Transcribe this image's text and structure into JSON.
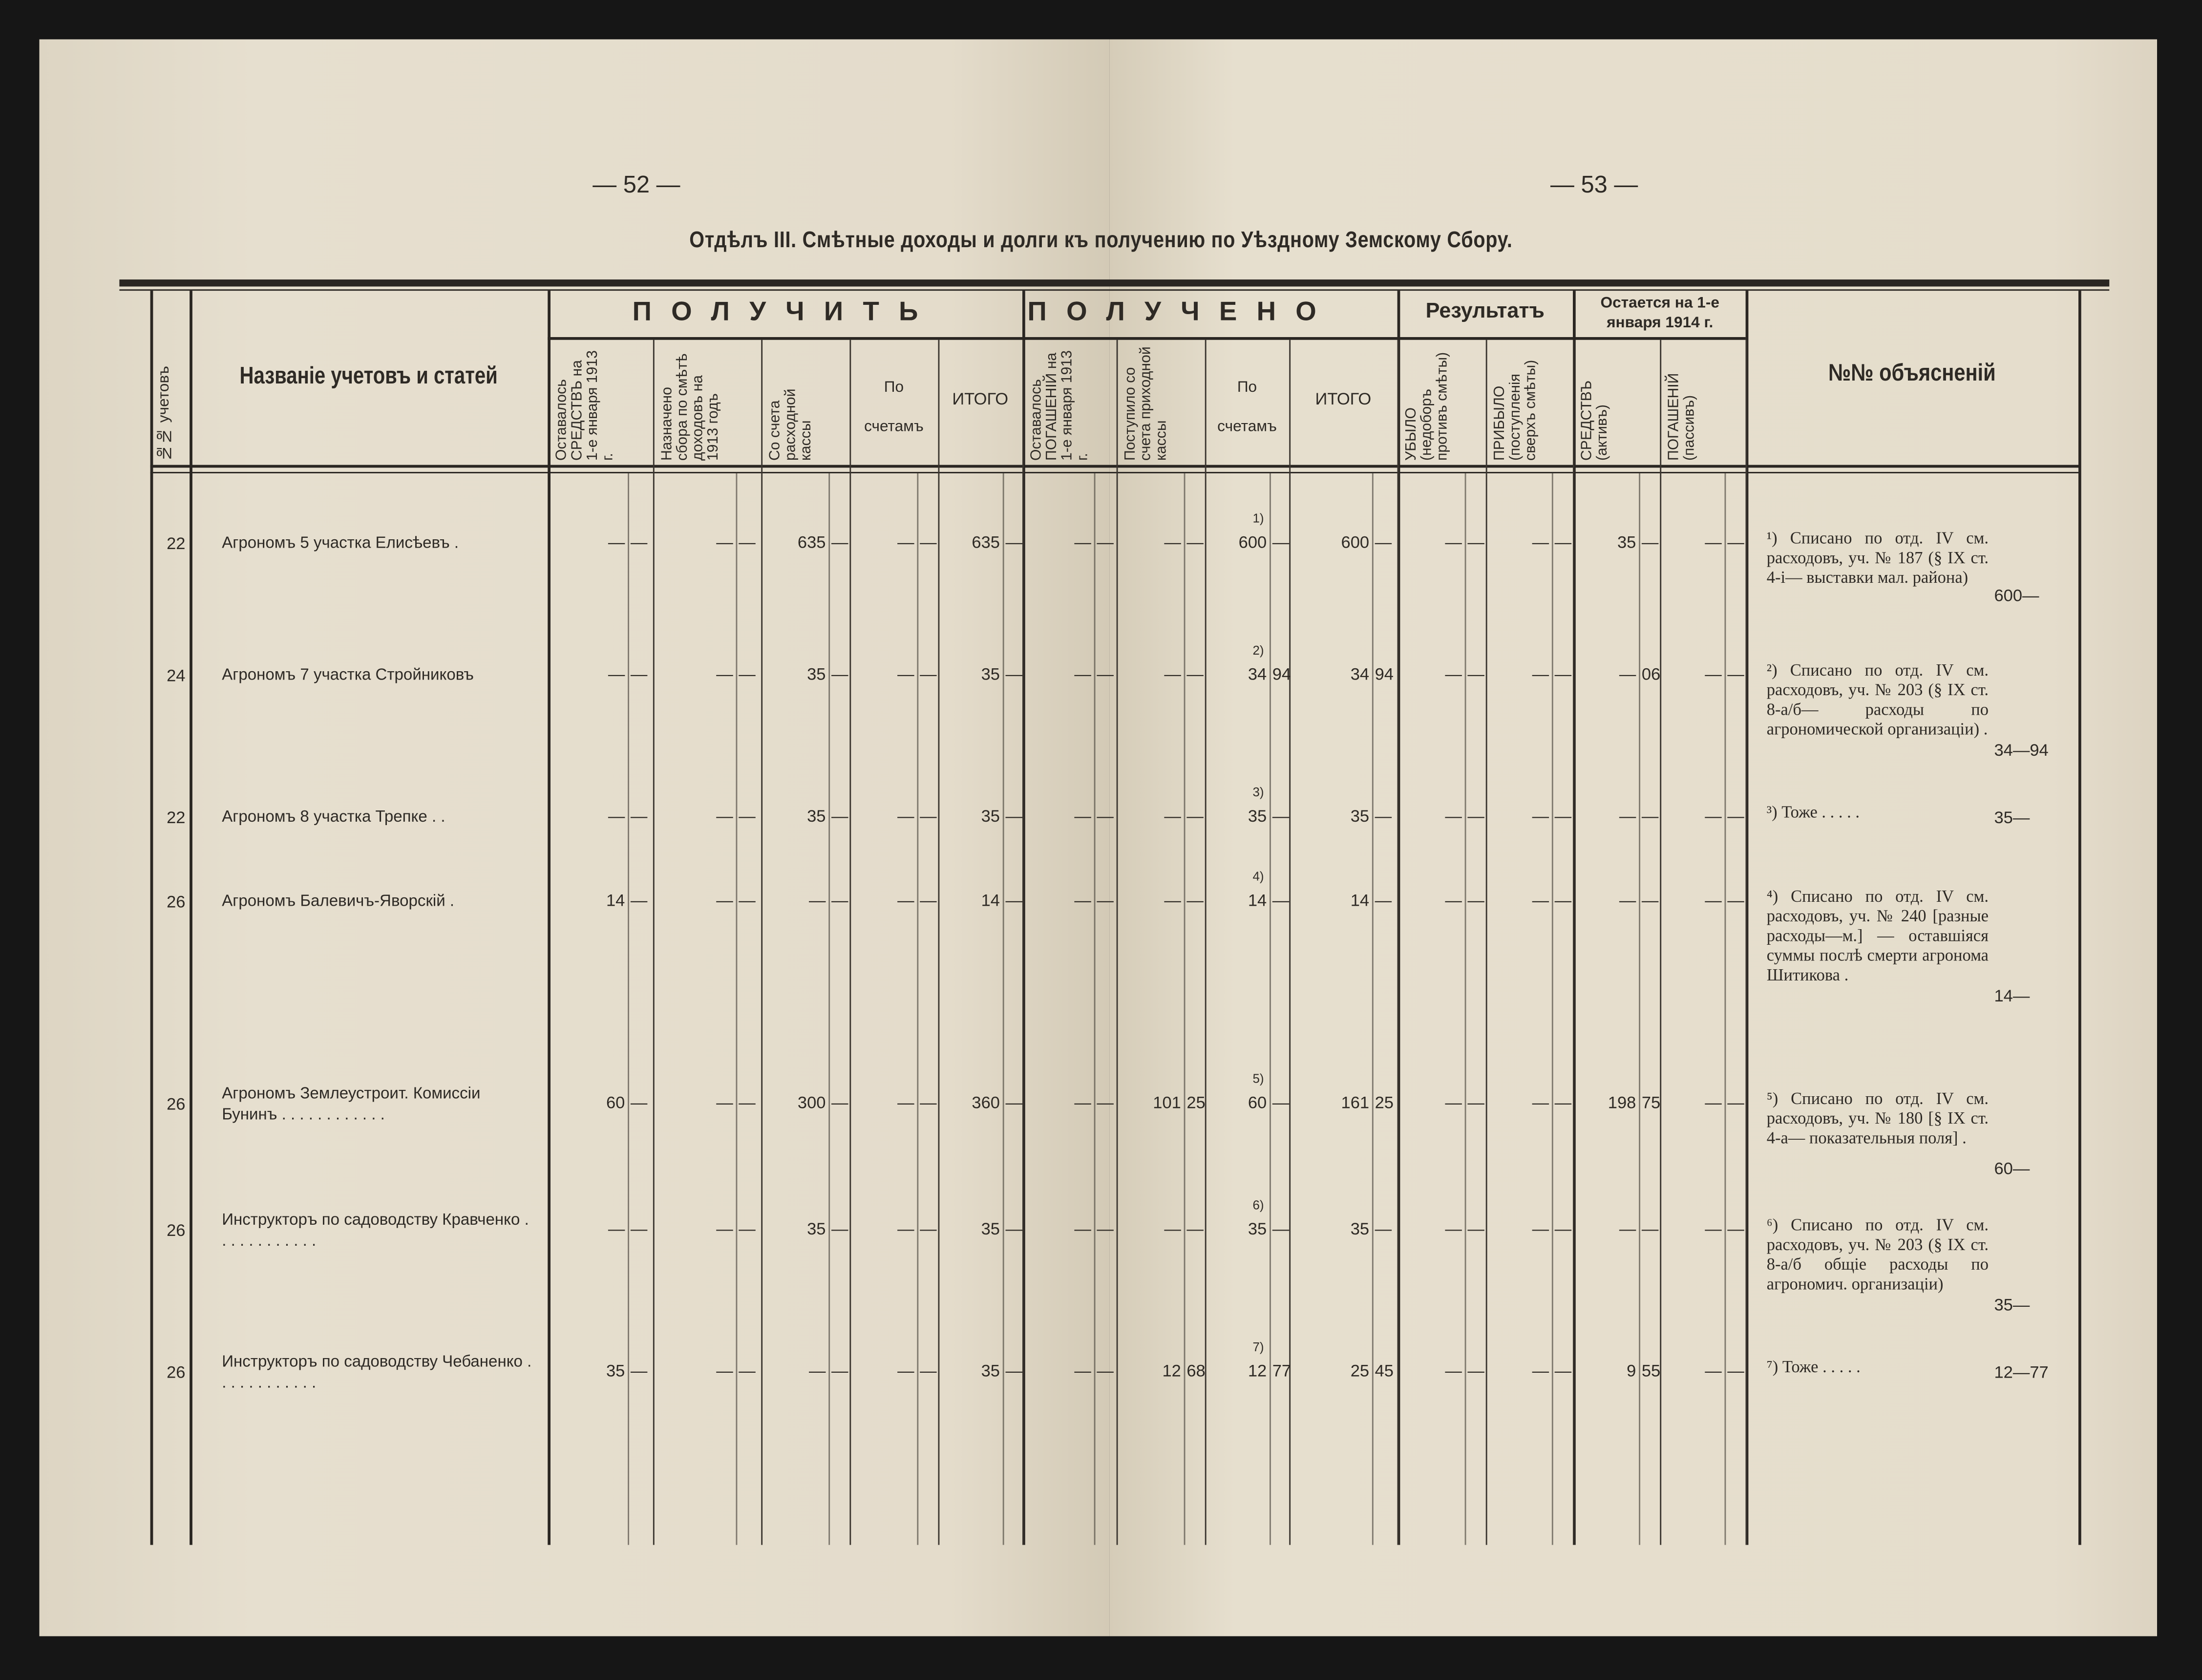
{
  "page_left_number": "— 52 —",
  "page_right_number": "— 53 —",
  "title": "Отдѣлъ III. Смѣтные доходы и долги къ получению по Уѣздному Земскому Сбору.",
  "header": {
    "num_col": "№№ учетовъ",
    "name_col": "Названіе учетовъ и статей",
    "group_receive": "ПОЛУЧИТЬ",
    "group_received": "ПОЛУЧЕНО",
    "group_result": "Результатъ",
    "group_remain": "Остается на 1-е января 1914 г.",
    "notes_col": "№№ объясненій",
    "receive_cols": [
      "Оставалось СРЕДСТВЪ на 1-е января 1913 г.",
      "Назначено сбора по смѣтѣ доходовъ на 1913 годъ",
      "Со счета расходной кассы",
      "По счетамъ",
      "ИТОГО"
    ],
    "received_cols": [
      "Оставалось ПОГАШЕНІЙ на 1-е января 1913 г.",
      "Поступило со счета приходной кассы",
      "По счетамъ",
      "ИТОГО"
    ],
    "result_cols": [
      "УБЫЛО (недоборъ противъ смѣты)",
      "ПРИБЫЛО (поступленія сверхъ смѣты)"
    ],
    "remain_cols": [
      "СРЕДСТВЪ (активъ)",
      "ПОГАШЕНІЙ (пассивъ)"
    ]
  },
  "rows": [
    {
      "num": "22",
      "name": "Агрономъ 5 участка Елисѣевъ  .",
      "cells": [
        [
          "—",
          "—"
        ],
        [
          "—",
          "—"
        ],
        [
          "635",
          "—"
        ],
        [
          "—",
          "—"
        ],
        [
          "635",
          "—"
        ],
        [
          "—",
          "—"
        ],
        [
          "—",
          "—"
        ],
        [
          "600",
          "—"
        ],
        [
          "600",
          "—"
        ],
        [
          "—",
          "—"
        ],
        [
          "—",
          "—"
        ],
        [
          "35",
          "—"
        ],
        [
          "—",
          "—"
        ]
      ],
      "mark": "1)",
      "note": "¹) Списано по отд. IV см. расходовъ, уч. № 187 (§ IX ст. 4-i— выставки мал. района)",
      "amount": "600—"
    },
    {
      "num": "24",
      "name": "Агрономъ 7 участка Стройниковъ",
      "cells": [
        [
          "—",
          "—"
        ],
        [
          "—",
          "—"
        ],
        [
          "35",
          "—"
        ],
        [
          "—",
          "—"
        ],
        [
          "35",
          "—"
        ],
        [
          "—",
          "—"
        ],
        [
          "—",
          "—"
        ],
        [
          "34",
          "94"
        ],
        [
          "34",
          "94"
        ],
        [
          "—",
          "—"
        ],
        [
          "—",
          "—"
        ],
        [
          "—",
          "06"
        ],
        [
          "—",
          "—"
        ]
      ],
      "mark": "2)",
      "note": "²) Списано по отд. IV см. расходовъ, уч. № 203 (§ IX ст. 8-а/б— расходы по агрономической организаціи) .",
      "amount": "34—94"
    },
    {
      "num": "22",
      "name": "Агрономъ 8 участка Трепке  . .",
      "cells": [
        [
          "—",
          "—"
        ],
        [
          "—",
          "—"
        ],
        [
          "35",
          "—"
        ],
        [
          "—",
          "—"
        ],
        [
          "35",
          "—"
        ],
        [
          "—",
          "—"
        ],
        [
          "—",
          "—"
        ],
        [
          "35",
          "—"
        ],
        [
          "35",
          "—"
        ],
        [
          "—",
          "—"
        ],
        [
          "—",
          "—"
        ],
        [
          "—",
          "—"
        ],
        [
          "—",
          "—"
        ]
      ],
      "mark": "3)",
      "note": "³) Тоже . . . . .",
      "amount": "35—"
    },
    {
      "num": "26",
      "name": "Агрономъ Балевичъ-Яворскій  .",
      "cells": [
        [
          "14",
          "—"
        ],
        [
          "—",
          "—"
        ],
        [
          "—",
          "—"
        ],
        [
          "—",
          "—"
        ],
        [
          "14",
          "—"
        ],
        [
          "—",
          "—"
        ],
        [
          "—",
          "—"
        ],
        [
          "14",
          "—"
        ],
        [
          "14",
          "—"
        ],
        [
          "—",
          "—"
        ],
        [
          "—",
          "—"
        ],
        [
          "—",
          "—"
        ],
        [
          "—",
          "—"
        ]
      ],
      "mark": "4)",
      "note": "⁴) Списано по отд. IV см. расходовъ, уч. № 240 [разные расходы—м.] — оставшіяся суммы послѣ смерти агронома Шитикова .",
      "amount": "14—"
    },
    {
      "num": "26",
      "name": "Агрономъ Землеустроит. Комиссіи Бунинъ . . . . . . . . . . . .",
      "cells": [
        [
          "60",
          "—"
        ],
        [
          "—",
          "—"
        ],
        [
          "300",
          "—"
        ],
        [
          "—",
          "—"
        ],
        [
          "360",
          "—"
        ],
        [
          "—",
          "—"
        ],
        [
          "101",
          "25"
        ],
        [
          "60",
          "—"
        ],
        [
          "161",
          "25"
        ],
        [
          "—",
          "—"
        ],
        [
          "—",
          "—"
        ],
        [
          "198",
          "75"
        ],
        [
          "—",
          "—"
        ]
      ],
      "mark": "5)",
      "note": "⁵) Списано по отд. IV см. расходовъ, уч. № 180 [§ IX ст. 4-а— показательныя поля] .",
      "amount": "60—"
    },
    {
      "num": "26",
      "name": "Инструкторъ по садоводству Кравченко . . . . . . . . . . . .",
      "cells": [
        [
          "—",
          "—"
        ],
        [
          "—",
          "—"
        ],
        [
          "35",
          "—"
        ],
        [
          "—",
          "—"
        ],
        [
          "35",
          "—"
        ],
        [
          "—",
          "—"
        ],
        [
          "—",
          "—"
        ],
        [
          "35",
          "—"
        ],
        [
          "35",
          "—"
        ],
        [
          "—",
          "—"
        ],
        [
          "—",
          "—"
        ],
        [
          "—",
          "—"
        ],
        [
          "—",
          "—"
        ]
      ],
      "mark": "6)",
      "note": "⁶) Списано по отд. IV см. расходовъ, уч. № 203 (§ IX ст. 8-а/б общіе расходы по агрономич. организаціи)",
      "amount": "35—"
    },
    {
      "num": "26",
      "name": "Инструкторъ по садоводству Чебаненко . . . . . . . . . . . .",
      "cells": [
        [
          "35",
          "—"
        ],
        [
          "—",
          "—"
        ],
        [
          "—",
          "—"
        ],
        [
          "—",
          "—"
        ],
        [
          "35",
          "—"
        ],
        [
          "—",
          "—"
        ],
        [
          "12",
          "68"
        ],
        [
          "12",
          "77"
        ],
        [
          "25",
          "45"
        ],
        [
          "—",
          "—"
        ],
        [
          "—",
          "—"
        ],
        [
          "9",
          "55"
        ],
        [
          "—",
          "—"
        ]
      ],
      "mark": "7)",
      "note": "⁷) Тоже . . . . .",
      "amount": "12—77"
    }
  ]
}
